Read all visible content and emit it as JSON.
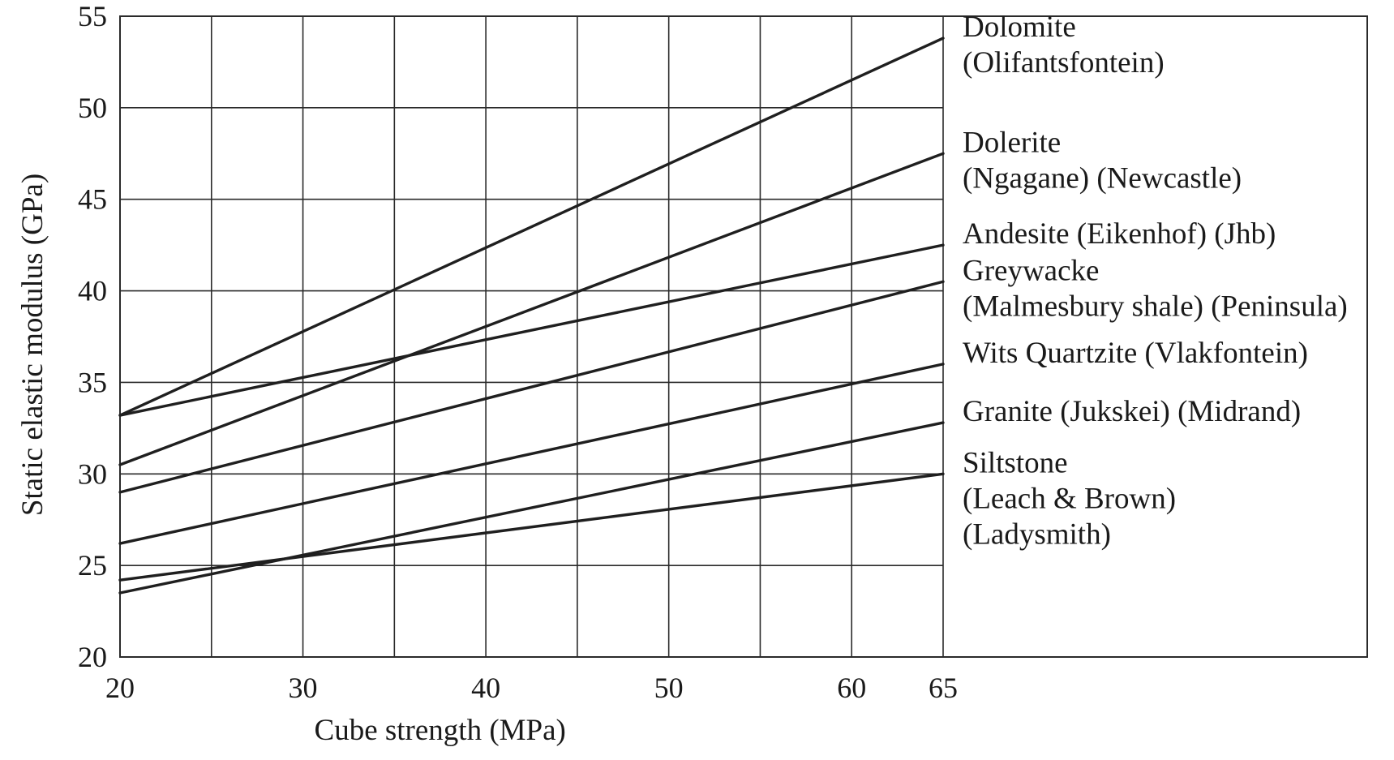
{
  "chart_data": {
    "type": "line",
    "xlabel": "Cube strength (MPa)",
    "ylabel": "Static elastic modulus (GPa)",
    "xlim": [
      20,
      65
    ],
    "ylim": [
      20,
      55
    ],
    "xticks": [
      20,
      30,
      40,
      50,
      60,
      65
    ],
    "yticks": [
      20,
      25,
      30,
      35,
      40,
      45,
      50,
      55
    ],
    "grid_x": [
      20,
      25,
      30,
      35,
      40,
      45,
      50,
      55,
      60,
      65
    ],
    "grid_y": [
      20,
      25,
      30,
      35,
      40,
      45,
      50,
      55
    ],
    "grid": true,
    "legend": "right, inline labels at line ends",
    "series": [
      {
        "name": "Dolomite (Olifantsfontein)",
        "label_lines": [
          "Dolomite",
          "(Olifantsfontein)"
        ],
        "x": [
          20,
          65
        ],
        "y": [
          33.2,
          53.8
        ]
      },
      {
        "name": "Dolerite (Ngagane) (Newcastle)",
        "label_lines": [
          "Dolerite",
          "(Ngagane) (Newcastle)"
        ],
        "x": [
          20,
          65
        ],
        "y": [
          30.5,
          47.5
        ]
      },
      {
        "name": "Andesite (Eikenhof) (Jhb)",
        "label_lines": [
          "Andesite (Eikenhof) (Jhb)"
        ],
        "x": [
          20,
          65
        ],
        "y": [
          33.2,
          42.5
        ]
      },
      {
        "name": "Greywacke (Malmesbury shale) (Peninsula)",
        "label_lines": [
          "Greywacke",
          "(Malmesbury shale) (Peninsula)"
        ],
        "x": [
          20,
          65
        ],
        "y": [
          29.0,
          40.5
        ]
      },
      {
        "name": "Wits Quartzite (Vlakfontein)",
        "label_lines": [
          "Wits Quartzite (Vlakfontein)"
        ],
        "x": [
          20,
          65
        ],
        "y": [
          26.2,
          36.0
        ]
      },
      {
        "name": "Granite (Jukskei) (Midrand)",
        "label_lines": [
          "Granite (Jukskei) (Midrand)"
        ],
        "x": [
          20,
          65
        ],
        "y": [
          23.5,
          32.8
        ]
      },
      {
        "name": "Siltstone (Leach & Brown) (Ladysmith)",
        "label_lines": [
          "Siltstone",
          "(Leach & Brown)",
          "(Ladysmith)"
        ],
        "x": [
          20,
          65
        ],
        "y": [
          24.2,
          30.0
        ]
      }
    ]
  },
  "colors": {
    "line": "#1f1f1f",
    "grid": "#2a2a2a",
    "text": "#1a1a1a"
  }
}
